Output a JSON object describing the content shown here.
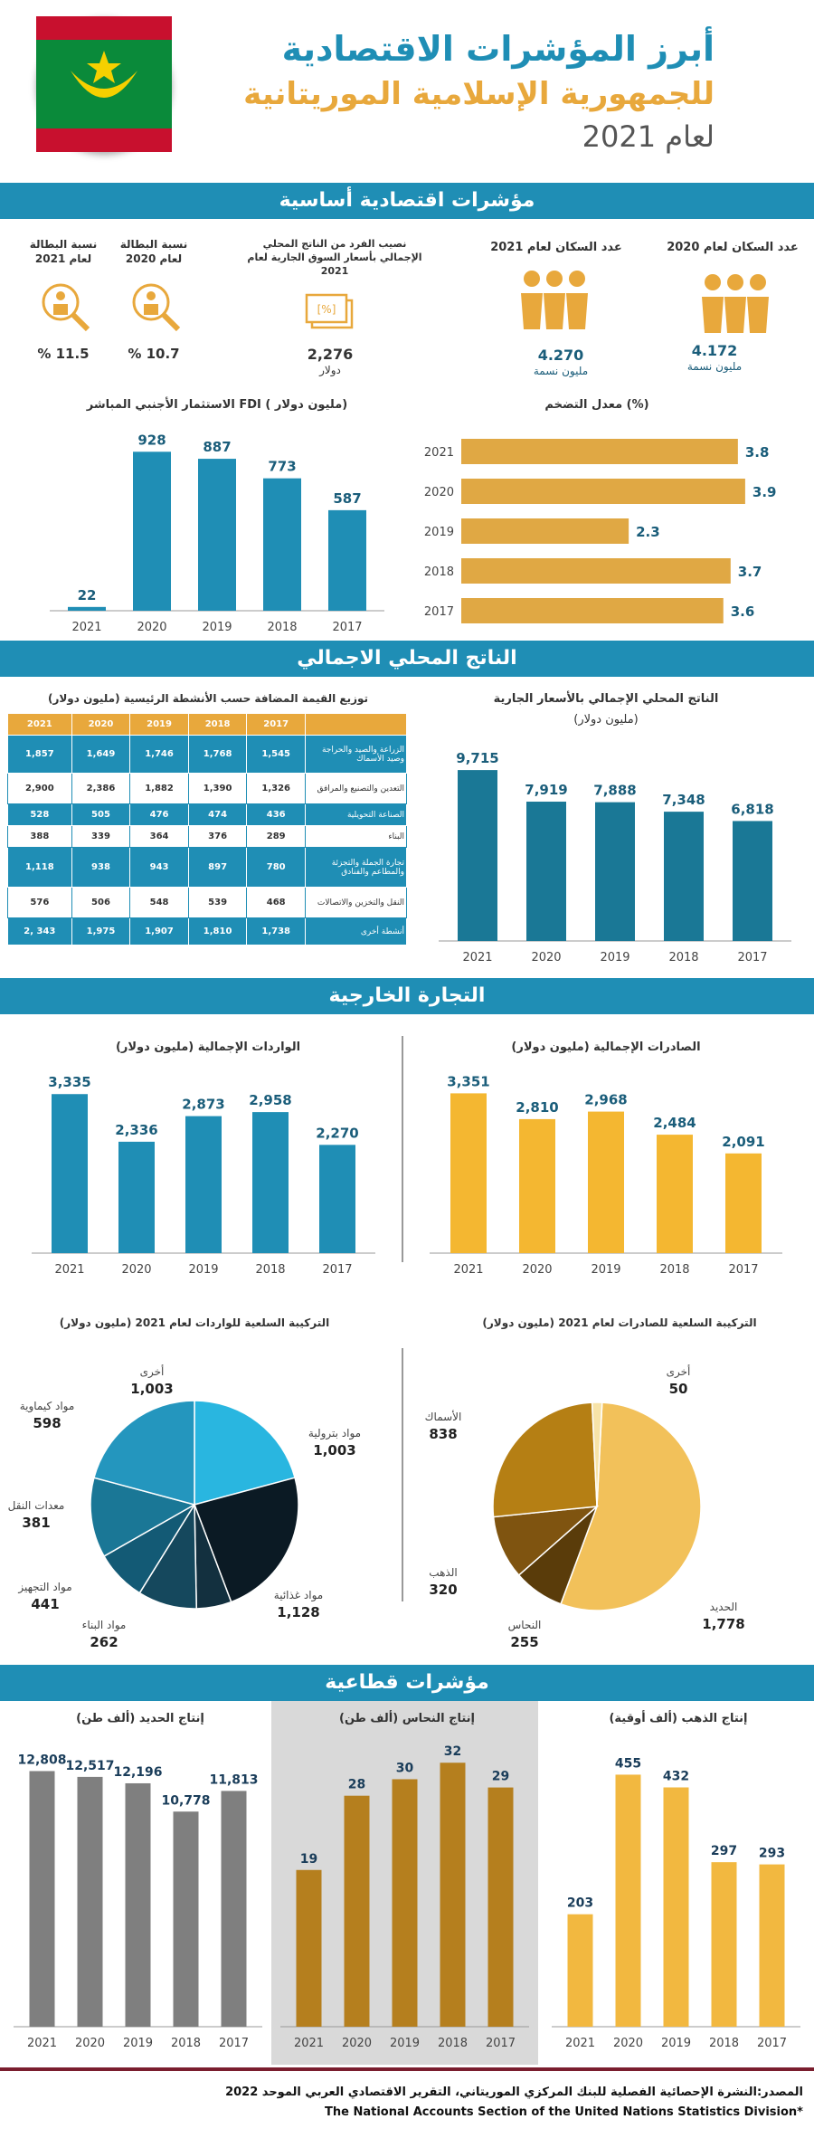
{
  "header": {
    "title1": "أبرز المؤشرات الاقتصادية",
    "title2": "للجمهورية الإسلامية الموريتانية",
    "title3": "لعام 2021"
  },
  "s1": {
    "title": "مؤشرات اقتصادية أساسية",
    "pop2020": {
      "label": "عدد السكان لعام 2020",
      "value": "4.172",
      "unit": "مليون نسمة"
    },
    "pop2021": {
      "label": "عدد السكان لعام 2021",
      "value": "4.270",
      "unit": "مليون نسمة"
    },
    "gdppc": {
      "label": "نصيب الفرد من الناتج المحلي الإجمالي بأسعار السوق الجارية لعام 2021",
      "value": "2,276",
      "unit": "دولار"
    },
    "unemp2020": {
      "label": "نسبة البطالة لعام 2020",
      "value": "% 10.7"
    },
    "unemp2021": {
      "label": "نسبة البطالة لعام 2021",
      "value": "% 11.5"
    },
    "fdi_title": "الاستثمار الأجنبي المباشر FDI ( مليون دولار)",
    "infl_title": "معدل التضخم (%)"
  },
  "s2": {
    "title": "الناتج المحلي الاجمالي",
    "table_title": "توزيع القيمة المضافة حسب الأنشطة الرئيسية (مليون دولار)",
    "gdp_title1": "الناتج المحلي الإجمالي بالأسعار الجارية",
    "gdp_title2": "(مليون دولار)",
    "table": {
      "years": [
        "2021",
        "2020",
        "2019",
        "2018",
        "2017"
      ],
      "rows": [
        {
          "label": "الزراعة والصيد والحراجة وصيد الأسماك",
          "vals": [
            "1,857",
            "1,649",
            "1,746",
            "1,768",
            "1,545"
          ]
        },
        {
          "label": "التعدين والتصنيع والمرافق",
          "vals": [
            "2,900",
            "2,386",
            "1,882",
            "1,390",
            "1,326"
          ]
        },
        {
          "label": "الصناعة التحويلية",
          "vals": [
            "528",
            "505",
            "476",
            "474",
            "436"
          ]
        },
        {
          "label": "البناء",
          "vals": [
            "388",
            "339",
            "364",
            "376",
            "289"
          ]
        },
        {
          "label": "تجارة الجملة والتجزئة والمطاعم والفنادق",
          "vals": [
            "1,118",
            "938",
            "943",
            "897",
            "780"
          ]
        },
        {
          "label": "النقل والتخزين والاتصالات",
          "vals": [
            "576",
            "506",
            "548",
            "539",
            "468"
          ]
        },
        {
          "label": "أنشطة أخرى",
          "vals": [
            "2, 343",
            "1,975",
            "1,907",
            "1,810",
            "1,738"
          ]
        }
      ]
    }
  },
  "s3": {
    "title": "التجارة الخارجية",
    "imp_title": "الواردات الإجمالية (مليون دولار)",
    "exp_title": "الصادرات الإجمالية (مليون دولار)",
    "imp_comp_title": "التركيبة السلعية للواردات لعام 2021 (مليون دولار)",
    "exp_comp_title": "التركيبة السلعية للصادرات لعام 2021 (مليون دولار)"
  },
  "s4": {
    "title": "مؤشرات قطاعية",
    "iron_title": "إنتاج الحديد (ألف طن)",
    "copper_title": "إنتاج النحاس (ألف طن)",
    "gold_title": "إنتاج الذهب (ألف أوقية)"
  },
  "footer": {
    "line1": "المصدر:النشرة الإحصائية الفصلية للبنك المركزي الموريتاني، التقرير الاقتصادي العربي الموحد 2022",
    "line2": "The National Accounts Section of the United Nations Statistics Division*"
  },
  "colors": {
    "blue": "#1f8eb5",
    "gold": "#e8a83c",
    "yellow": "#f4b731",
    "gray": "#7f7f7f",
    "copper": "#b57f1e",
    "gold2": "#f2b840"
  },
  "chart_data": [
    {
      "id": "fdi",
      "type": "bar",
      "categories": [
        "2021",
        "2020",
        "2019",
        "2018",
        "2017"
      ],
      "values": [
        22,
        928,
        887,
        773,
        587
      ],
      "labels": [
        "22",
        "928",
        "887",
        "773",
        "587"
      ],
      "title": "الاستثمار الأجنبي المباشر FDI ( مليون دولار)"
    },
    {
      "id": "inflation",
      "type": "bar",
      "orientation": "horizontal",
      "categories": [
        "2021",
        "2020",
        "2019",
        "2018",
        "2017"
      ],
      "values": [
        3.8,
        3.9,
        2.3,
        3.7,
        3.6
      ],
      "labels": [
        "3.8",
        "3.9",
        "2.3",
        "3.7",
        "3.6"
      ],
      "title": "معدل التضخم (%)"
    },
    {
      "id": "gdp",
      "type": "bar",
      "categories": [
        "2021",
        "2020",
        "2019",
        "2018",
        "2017"
      ],
      "values": [
        9715,
        7919,
        7888,
        7348,
        6818
      ],
      "labels": [
        "9,715",
        "7,919",
        "7,888",
        "7,348",
        "6,818"
      ],
      "title": "الناتج المحلي الإجمالي بالأسعار الجارية (مليون دولار)"
    },
    {
      "id": "imports",
      "type": "bar",
      "categories": [
        "2021",
        "2020",
        "2019",
        "2018",
        "2017"
      ],
      "values": [
        3335,
        2336,
        2873,
        2958,
        2270
      ],
      "labels": [
        "3,335",
        "2,336",
        "2,873",
        "2,958",
        "2,270"
      ],
      "title": "الواردات الإجمالية (مليون دولار)"
    },
    {
      "id": "exports",
      "type": "bar",
      "categories": [
        "2021",
        "2020",
        "2019",
        "2018",
        "2017"
      ],
      "values": [
        3351,
        2810,
        2968,
        2484,
        2091
      ],
      "labels": [
        "3,351",
        "2,810",
        "2,968",
        "2,484",
        "2,091"
      ],
      "title": "الصادرات الإجمالية (مليون دولار)"
    },
    {
      "id": "imp_pie",
      "type": "pie",
      "title": "التركيبة السلعية للواردات لعام 2021 (مليون دولار)",
      "slices": [
        {
          "name": "مواد بترولية",
          "value": 1003,
          "label": "1,003",
          "color": "#29b6e0"
        },
        {
          "name": "مواد غذائية",
          "value": 1128,
          "label": "1,128",
          "color": "#0b1a24"
        },
        {
          "name": "مواد البناء",
          "value": 262,
          "label": "262",
          "color": "#13303f"
        },
        {
          "name": "مواد التجهيز",
          "value": 441,
          "label": "441",
          "color": "#15485d"
        },
        {
          "name": "معدات النقل",
          "value": 381,
          "label": "381",
          "color": "#135a75"
        },
        {
          "name": "مواد كيماوية",
          "value": 598,
          "label": "598",
          "color": "#1a7796"
        },
        {
          "name": "أخرى",
          "value": 1003,
          "label": "1,003",
          "color": "#2496be"
        }
      ]
    },
    {
      "id": "exp_pie",
      "type": "pie",
      "title": "التركيبة السلعية للصادرات لعام 2021 (مليون دولار)",
      "slices": [
        {
          "name": "الحديد",
          "value": 1778,
          "label": "1,778",
          "color": "#f2c15a"
        },
        {
          "name": "النحاس",
          "value": 255,
          "label": "255",
          "color": "#5a3c0a"
        },
        {
          "name": "الذهب",
          "value": 320,
          "label": "320",
          "color": "#7f5410"
        },
        {
          "name": "الأسماك",
          "value": 838,
          "label": "838",
          "color": "#b57f14"
        },
        {
          "name": "أخرى",
          "value": 50,
          "label": "50",
          "color": "#f7e3a8"
        }
      ]
    },
    {
      "id": "iron",
      "type": "bar",
      "categories": [
        "2021",
        "2020",
        "2019",
        "2018",
        "2017"
      ],
      "values": [
        12808,
        12517,
        12196,
        10778,
        11813
      ],
      "labels": [
        "12,808",
        "12,517",
        "12,196",
        "10,778",
        "11,813"
      ],
      "title": "إنتاج الحديد (ألف طن)"
    },
    {
      "id": "copper",
      "type": "bar",
      "categories": [
        "2021",
        "2020",
        "2019",
        "2018",
        "2017"
      ],
      "values": [
        19,
        28,
        30,
        32,
        29
      ],
      "labels": [
        "19",
        "28",
        "30",
        "32",
        "29"
      ],
      "title": "إنتاج النحاس (ألف طن)"
    },
    {
      "id": "gold",
      "type": "bar",
      "categories": [
        "2021",
        "2020",
        "2019",
        "2018",
        "2017"
      ],
      "values": [
        203,
        455,
        432,
        297,
        293
      ],
      "labels": [
        "203",
        "455",
        "432",
        "297",
        "293"
      ],
      "title": "إنتاج الذهب (ألف أوقية)"
    }
  ]
}
